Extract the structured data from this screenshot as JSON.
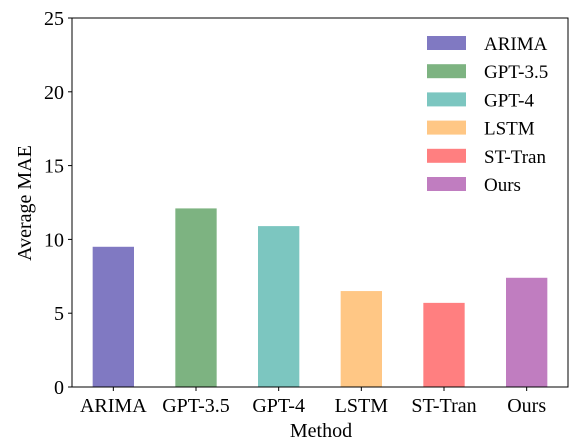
{
  "chart_data": {
    "type": "bar",
    "title": "",
    "xlabel": "Method",
    "ylabel": "Average MAE",
    "categories": [
      "ARIMA",
      "GPT-3.5",
      "GPT-4",
      "LSTM",
      "ST-Tran",
      "Ours"
    ],
    "values": [
      9.5,
      12.1,
      10.9,
      6.5,
      5.7,
      7.4
    ],
    "colors": [
      "#8079C2",
      "#7DB381",
      "#7CC6C0",
      "#FFC785",
      "#FF7F80",
      "#C07DC0"
    ],
    "ylim": [
      0,
      25
    ],
    "yticks": [
      "0",
      "5",
      "10",
      "15",
      "20",
      "25"
    ],
    "grid": false,
    "legend": {
      "placement": "top-right",
      "entries": [
        "ARIMA",
        "GPT-3.5",
        "GPT-4",
        "LSTM",
        "ST-Tran",
        "Ours"
      ]
    }
  }
}
